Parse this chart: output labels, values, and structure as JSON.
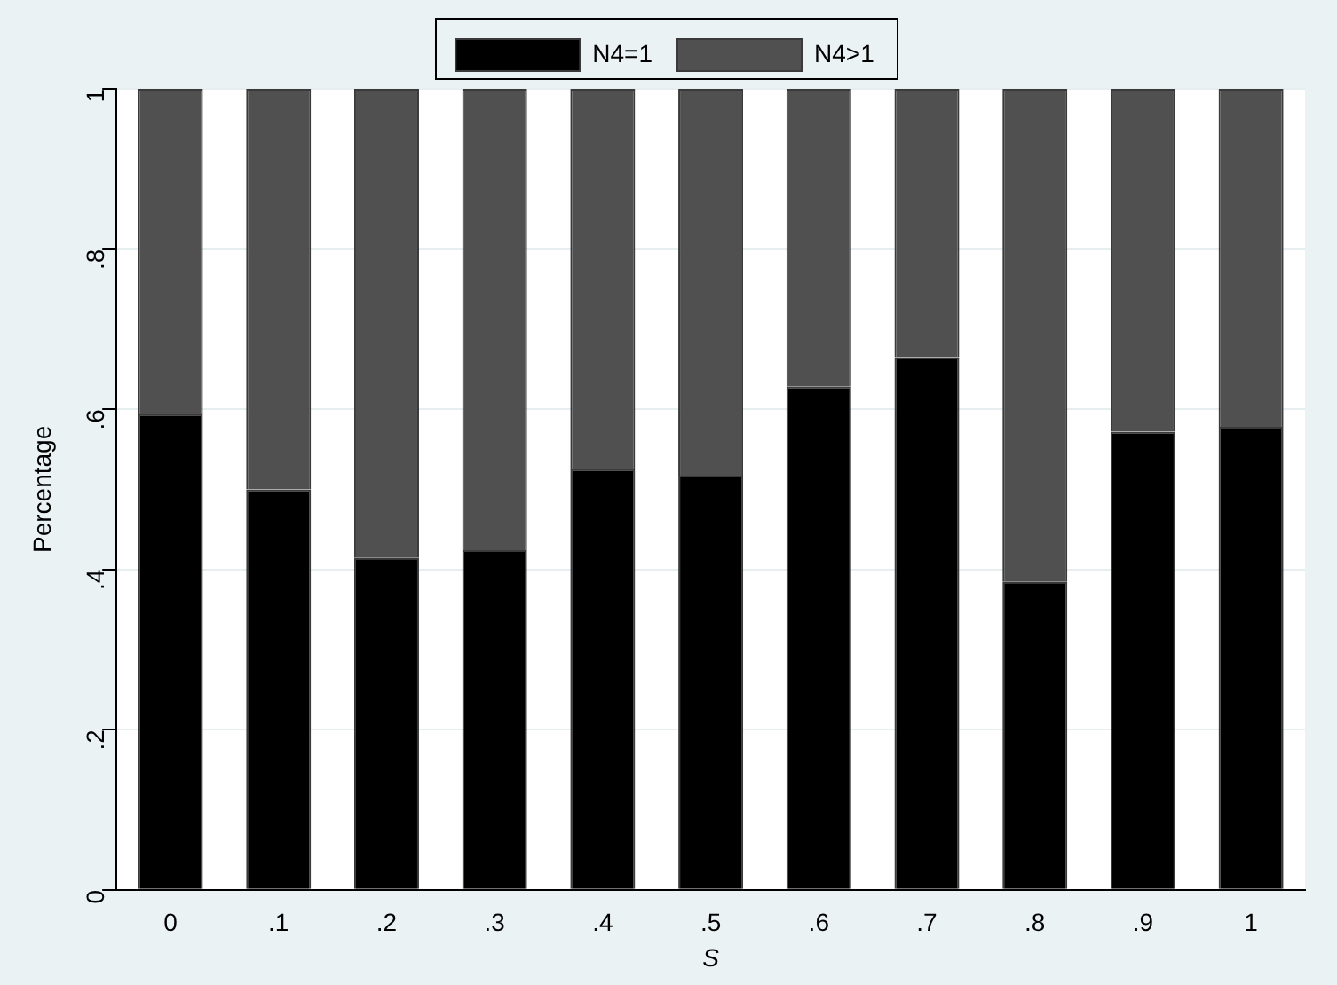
{
  "chart_data": {
    "type": "bar",
    "stacked": true,
    "xlabel": "S",
    "ylabel": "Percentage",
    "categories": [
      "0",
      ".1",
      ".2",
      ".3",
      ".4",
      ".5",
      ".6",
      ".7",
      ".8",
      ".9",
      "1"
    ],
    "series": [
      {
        "name": "N4=1",
        "color": "#000000",
        "values": [
          0.594,
          0.5,
          0.415,
          0.424,
          0.525,
          0.517,
          0.628,
          0.665,
          0.385,
          0.572,
          0.578
        ]
      },
      {
        "name": "N4>1",
        "color": "#505050",
        "values": [
          0.406,
          0.5,
          0.585,
          0.576,
          0.475,
          0.483,
          0.372,
          0.335,
          0.615,
          0.428,
          0.422
        ]
      }
    ],
    "ylim": [
      0,
      1
    ],
    "yticks": [
      0,
      {
        "value": 0.2,
        "label": ".2"
      },
      {
        "value": 0.4,
        "label": ".4"
      },
      {
        "value": 0.6,
        "label": ".6"
      },
      {
        "value": 0.8,
        "label": ".8"
      },
      1
    ],
    "grid": "y",
    "legend": "top"
  }
}
